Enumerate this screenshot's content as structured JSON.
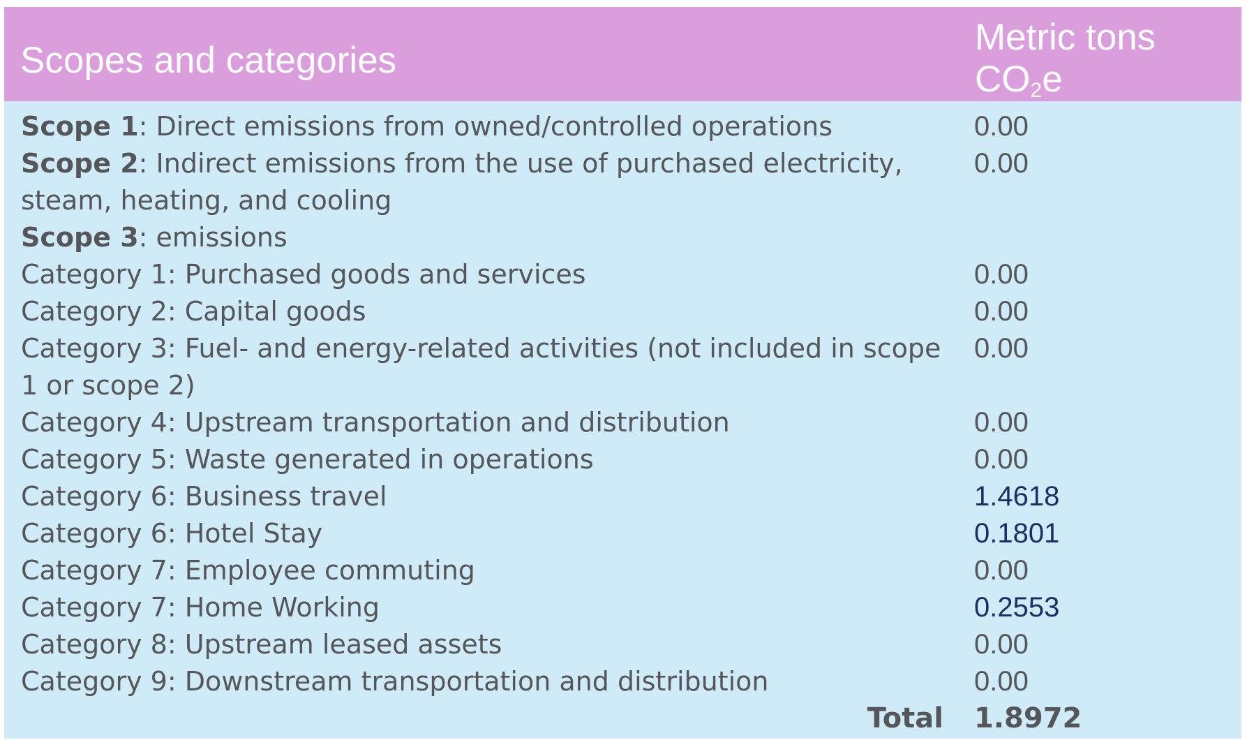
{
  "header": {
    "left": "Scopes and categories",
    "right_line1": "Metric tons",
    "right_co": "CO",
    "right_sub": "2",
    "right_e": "e"
  },
  "rows": [
    {
      "bold": "Scope 1",
      "rest": ": Direct emissions from owned/controlled operations",
      "value": "0.00"
    },
    {
      "bold": "Scope 2",
      "rest": ": Indirect emissions from the use of purchased electricity, steam, heating, and cooling",
      "value": "0.00"
    },
    {
      "bold": "Scope 3",
      "rest": ": emissions",
      "value": ""
    },
    {
      "bold": "",
      "rest": "Category 1: Purchased goods and services",
      "value": "0.00"
    },
    {
      "bold": "",
      "rest": "Category 2: Capital goods",
      "value": "0.00"
    },
    {
      "bold": "",
      "rest": "Category 3: Fuel- and energy-related activities (not included in scope 1 or scope 2)",
      "value": "0.00"
    },
    {
      "bold": "",
      "rest": "Category 4: Upstream transportation and distribution",
      "value": "0.00"
    },
    {
      "bold": "",
      "rest": "Category 5: Waste generated in operations",
      "value": "0.00"
    },
    {
      "bold": "",
      "rest": "Category 6: Business travel",
      "value": "1.4618"
    },
    {
      "bold": "",
      "rest": "Category 6: Hotel Stay",
      "value": "0.1801"
    },
    {
      "bold": "",
      "rest": "Category 7: Employee commuting",
      "value": "0.00"
    },
    {
      "bold": "",
      "rest": "Category 7: Home Working",
      "value": "0.2553"
    },
    {
      "bold": "",
      "rest": "Category 8: Upstream leased assets",
      "value": "0.00"
    },
    {
      "bold": "",
      "rest": "Category 9: Downstream transportation and distribution",
      "value": "0.00"
    }
  ],
  "total": {
    "label": "Total",
    "value": "1.8972"
  }
}
